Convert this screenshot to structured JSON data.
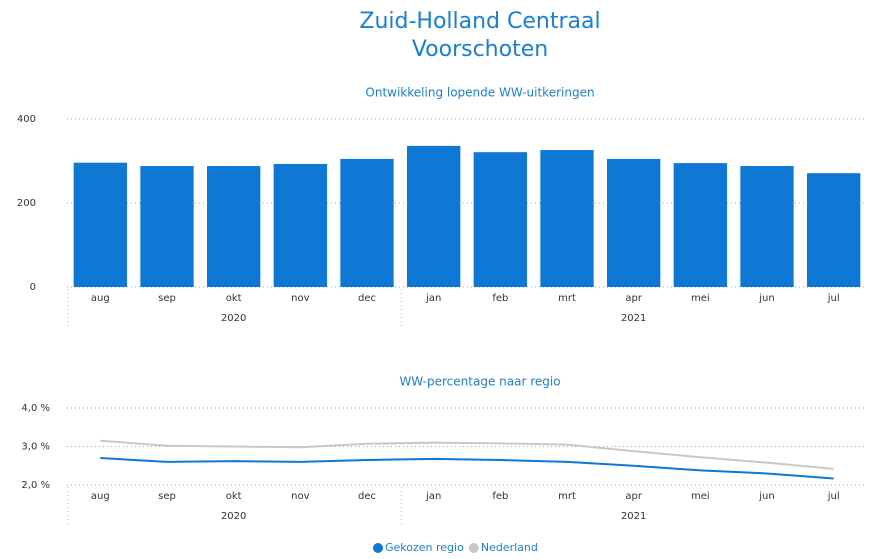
{
  "title": "Zuid-Holland Centraal",
  "subtitle": "Voorschoten",
  "chart_data": [
    {
      "type": "bar",
      "title": "Ontwikkeling lopende WW-uitkeringen",
      "categories": [
        "aug",
        "sep",
        "okt",
        "nov",
        "dec",
        "jan",
        "feb",
        "mrt",
        "apr",
        "mei",
        "jun",
        "jul"
      ],
      "years": [
        "2020",
        "2021"
      ],
      "values": [
        296,
        288,
        288,
        293,
        305,
        336,
        321,
        326,
        305,
        295,
        288,
        271
      ],
      "color": "#0f78d4",
      "ylim": [
        0,
        400
      ],
      "yticks": [
        0,
        200,
        400
      ],
      "grid": true
    },
    {
      "type": "line",
      "title": "WW-percentage naar regio",
      "categories": [
        "aug",
        "sep",
        "okt",
        "nov",
        "dec",
        "jan",
        "feb",
        "mrt",
        "apr",
        "mei",
        "jun",
        "jul"
      ],
      "years": [
        "2020",
        "2021"
      ],
      "series": [
        {
          "name": "Gekozen regio",
          "color": "#0f78d4",
          "values": [
            2.7,
            2.6,
            2.62,
            2.6,
            2.65,
            2.68,
            2.65,
            2.6,
            2.5,
            2.38,
            2.3,
            2.17
          ]
        },
        {
          "name": "Nederland",
          "color": "#c8c8c8",
          "values": [
            3.15,
            3.02,
            3.0,
            2.98,
            3.07,
            3.1,
            3.08,
            3.05,
            2.88,
            2.72,
            2.58,
            2.42
          ]
        }
      ],
      "ylim": [
        2,
        4
      ],
      "yticks": [
        {
          "value": 2,
          "label": "2,0 %"
        },
        {
          "value": 3,
          "label": "3,0 %"
        },
        {
          "value": 4,
          "label": "4,0 %"
        }
      ],
      "grid": true,
      "legend": "bottom"
    }
  ]
}
